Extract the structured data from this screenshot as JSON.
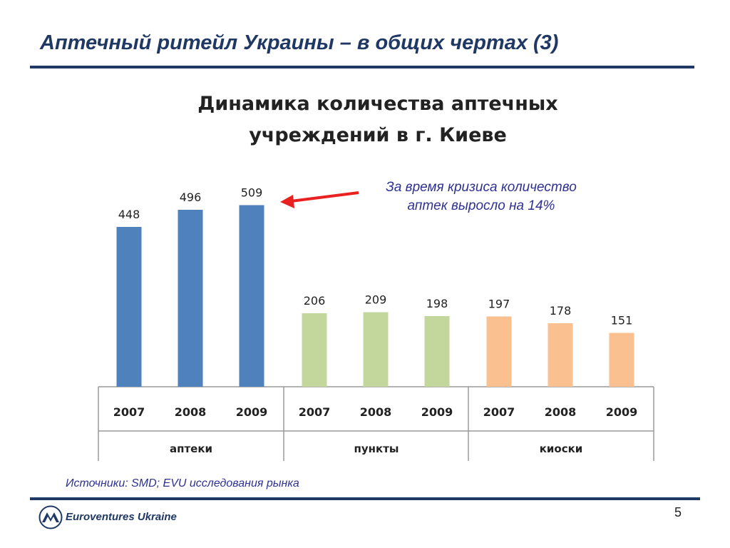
{
  "slide": {
    "title": "Аптечный ритейл Украины – в общих чертах (3)",
    "source": "Источники: SMD; EVU исследования рынка",
    "brand": "Euroventures Ukraine",
    "page_number": "5"
  },
  "callout": {
    "line1": "За время кризиса количество",
    "line2": "аптек выросло на 14%",
    "arrow_color": "#e8201f"
  },
  "chart_data": {
    "type": "bar",
    "title": [
      "Динамика количества аптечных",
      "учреждений в г. Киеве"
    ],
    "groups": [
      {
        "name": "аптеки",
        "color": "#4f81bd",
        "categories": [
          "2007",
          "2008",
          "2009"
        ],
        "values": [
          448,
          496,
          509
        ]
      },
      {
        "name": "пункты",
        "color": "#c3d69b",
        "categories": [
          "2007",
          "2008",
          "2009"
        ],
        "values": [
          206,
          209,
          198
        ]
      },
      {
        "name": "киоски",
        "color": "#fac090",
        "categories": [
          "2007",
          "2008",
          "2009"
        ],
        "values": [
          197,
          178,
          151
        ]
      }
    ],
    "ylim": [
      0,
      580
    ],
    "grid": false,
    "legend": "none"
  }
}
